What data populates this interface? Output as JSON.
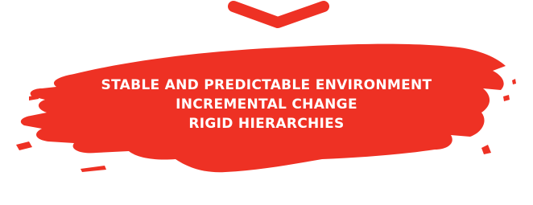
{
  "banner": {
    "lines": [
      "STABLE AND PREDICTABLE ENVIRONMENT",
      "INCREMENTAL CHANGE",
      "RIGID HIERARCHIES"
    ]
  }
}
